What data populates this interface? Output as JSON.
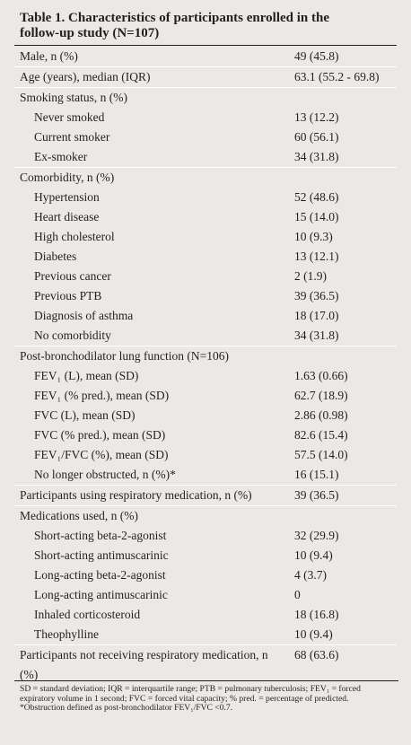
{
  "table": {
    "title": "Table 1. Characteristics of participants enrolled in the follow-up study (N=107)",
    "rows": [
      {
        "label": "Male, n (%)",
        "value": "49 (45.8)"
      },
      {
        "label": "Age (years), median (IQR)",
        "value": "63.1 (55.2 - 69.8)"
      },
      {
        "label": "Smoking status, n (%)",
        "items": [
          {
            "label": "Never smoked",
            "value": "13 (12.2)"
          },
          {
            "label": "Current smoker",
            "value": "60 (56.1)"
          },
          {
            "label": "Ex-smoker",
            "value": "34 (31.8)"
          }
        ]
      },
      {
        "label": "Comorbidity, n (%)",
        "items": [
          {
            "label": "Hypertension",
            "value": "52 (48.6)"
          },
          {
            "label": "Heart disease",
            "value": "15 (14.0)"
          },
          {
            "label": "High cholesterol",
            "value": "10 (9.3)"
          },
          {
            "label": "Diabetes",
            "value": "13 (12.1)"
          },
          {
            "label": "Previous cancer",
            "value": "2 (1.9)"
          },
          {
            "label": "Previous PTB",
            "value": "39 (36.5)"
          },
          {
            "label": "Diagnosis of asthma",
            "value": "18 (17.0)"
          },
          {
            "label": "No comorbidity",
            "value": "34 (31.8)"
          }
        ]
      },
      {
        "label": "Post-bronchodilator lung function (N=106)",
        "items": [
          {
            "label": "FEV₁ (L), mean (SD)",
            "value": "1.63 (0.66)"
          },
          {
            "label": "FEV₁ (% pred.), mean (SD)",
            "value": "62.7 (18.9)"
          },
          {
            "label": "FVC (L), mean (SD)",
            "value": "2.86 (0.98)"
          },
          {
            "label": "FVC (% pred.), mean (SD)",
            "value": "82.6 (15.4)"
          },
          {
            "label": "FEV₁/FVC (%), mean (SD)",
            "value": "57.5 (14.0)"
          },
          {
            "label": "No longer obstructed, n (%)*",
            "value": "16 (15.1)"
          }
        ]
      },
      {
        "label": "Participants using respiratory medication, n (%)",
        "value": "39 (36.5)"
      },
      {
        "label": "Medications used, n (%)",
        "items": [
          {
            "label": "Short-acting beta-2-agonist",
            "value": "32 (29.9)"
          },
          {
            "label": "Short-acting antimuscarinic",
            "value": "10 (9.4)"
          },
          {
            "label": "Long-acting beta-2-agonist",
            "value": "4 (3.7)"
          },
          {
            "label": "Long-acting antimuscarinic",
            "value": "0"
          },
          {
            "label": "Inhaled corticosteroid",
            "value": "18 (16.8)"
          },
          {
            "label": "Theophylline",
            "value": "10 (9.4)"
          }
        ]
      },
      {
        "label": "Participants not receiving respiratory medication, n (%)",
        "value": "68 (63.6)"
      }
    ],
    "footnotes": [
      "SD = standard deviation; IQR = interquartile range; PTB = pulmonary tuberculosis; FEV₁ = forced expiratory volume in 1 second; FVC = forced vital capacity; % pred. = percentage of predicted.",
      "*Obstruction defined as post-bronchodilator FEV₁/FVC <0.7."
    ]
  }
}
